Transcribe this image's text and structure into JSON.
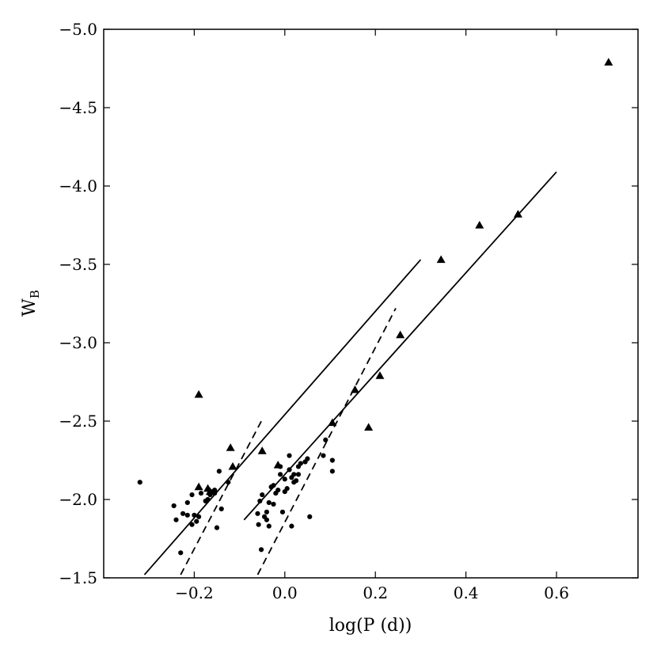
{
  "chart_data": {
    "type": "scatter",
    "xlabel": "log(P (d))",
    "ylabel": "W",
    "ylabel_subscript": "B",
    "xlim": [
      -0.4,
      0.78
    ],
    "ylim": [
      -1.5,
      -5.0
    ],
    "y_inverted": true,
    "grid": false,
    "x_ticks": [
      {
        "value": -0.2,
        "label": "−0.2"
      },
      {
        "value": 0.0,
        "label": "0.0"
      },
      {
        "value": 0.2,
        "label": "0.2"
      },
      {
        "value": 0.4,
        "label": "0.4"
      },
      {
        "value": 0.6,
        "label": "0.6"
      }
    ],
    "y_ticks": [
      {
        "value": -1.5,
        "label": "−1.5"
      },
      {
        "value": -2.0,
        "label": "−2.0"
      },
      {
        "value": -2.5,
        "label": "−2.5"
      },
      {
        "value": -3.0,
        "label": "−3.0"
      },
      {
        "value": -3.5,
        "label": "−3.5"
      },
      {
        "value": -4.0,
        "label": "−4.0"
      },
      {
        "value": -4.5,
        "label": "−4.5"
      },
      {
        "value": -5.0,
        "label": "−5.0"
      }
    ],
    "series": [
      {
        "marker": "circle",
        "points": [
          [
            -0.32,
            -2.11
          ],
          [
            -0.245,
            -1.96
          ],
          [
            -0.24,
            -1.87
          ],
          [
            -0.23,
            -1.66
          ],
          [
            -0.225,
            -1.91
          ],
          [
            -0.215,
            -1.9
          ],
          [
            -0.215,
            -1.98
          ],
          [
            -0.205,
            -1.84
          ],
          [
            -0.205,
            -2.03
          ],
          [
            -0.2,
            -1.9
          ],
          [
            -0.195,
            -1.86
          ],
          [
            -0.19,
            -1.89
          ],
          [
            -0.185,
            -2.04
          ],
          [
            -0.175,
            -1.99
          ],
          [
            -0.17,
            -2.0
          ],
          [
            -0.165,
            -2.03
          ],
          [
            -0.16,
            -2.05
          ],
          [
            -0.155,
            -2.04
          ],
          [
            -0.155,
            -2.06
          ],
          [
            -0.15,
            -1.82
          ],
          [
            -0.145,
            -2.18
          ],
          [
            -0.14,
            -1.94
          ],
          [
            -0.125,
            -2.11
          ],
          [
            -0.06,
            -1.91
          ],
          [
            -0.058,
            -1.84
          ],
          [
            -0.055,
            -1.99
          ],
          [
            -0.052,
            -1.68
          ],
          [
            -0.05,
            -2.03
          ],
          [
            -0.045,
            -1.89
          ],
          [
            -0.04,
            -1.92
          ],
          [
            -0.04,
            -1.87
          ],
          [
            -0.035,
            -1.83
          ],
          [
            -0.035,
            -1.98
          ],
          [
            -0.03,
            -2.08
          ],
          [
            -0.025,
            -1.97
          ],
          [
            -0.025,
            -2.09
          ],
          [
            -0.02,
            -2.04
          ],
          [
            -0.015,
            -2.06
          ],
          [
            -0.01,
            -2.16
          ],
          [
            -0.01,
            -2.21
          ],
          [
            -0.005,
            -1.92
          ],
          [
            0.0,
            -2.05
          ],
          [
            0.0,
            -2.13
          ],
          [
            0.005,
            -2.07
          ],
          [
            0.01,
            -2.19
          ],
          [
            0.01,
            -2.28
          ],
          [
            0.015,
            -2.14
          ],
          [
            0.015,
            -1.83
          ],
          [
            0.02,
            -2.16
          ],
          [
            0.02,
            -2.11
          ],
          [
            0.025,
            -2.12
          ],
          [
            0.03,
            -2.21
          ],
          [
            0.03,
            -2.16
          ],
          [
            0.035,
            -2.23
          ],
          [
            0.045,
            -2.24
          ],
          [
            0.05,
            -2.26
          ],
          [
            0.055,
            -1.89
          ],
          [
            0.085,
            -2.28
          ],
          [
            0.09,
            -2.38
          ],
          [
            0.105,
            -2.18
          ],
          [
            0.105,
            -2.25
          ]
        ]
      },
      {
        "marker": "triangle",
        "points": [
          [
            -0.19,
            -2.67
          ],
          [
            -0.19,
            -2.08
          ],
          [
            -0.17,
            -2.07
          ],
          [
            -0.165,
            -2.05
          ],
          [
            -0.12,
            -2.33
          ],
          [
            -0.115,
            -2.21
          ],
          [
            -0.05,
            -2.31
          ],
          [
            -0.015,
            -2.22
          ],
          [
            0.105,
            -2.49
          ],
          [
            0.155,
            -2.7
          ],
          [
            0.185,
            -2.46
          ],
          [
            0.21,
            -2.79
          ],
          [
            0.255,
            -3.05
          ],
          [
            0.345,
            -3.53
          ],
          [
            0.43,
            -3.75
          ],
          [
            0.515,
            -3.82
          ],
          [
            0.715,
            -4.79
          ]
        ]
      }
    ],
    "lines": [
      {
        "style": "solid",
        "points": [
          [
            -0.31,
            -1.52
          ],
          [
            0.3,
            -3.53
          ]
        ]
      },
      {
        "style": "solid",
        "points": [
          [
            -0.09,
            -1.87
          ],
          [
            0.6,
            -4.09
          ]
        ]
      },
      {
        "style": "dashed",
        "points": [
          [
            -0.23,
            -1.52
          ],
          [
            -0.05,
            -2.51
          ]
        ]
      },
      {
        "style": "dashed",
        "points": [
          [
            -0.06,
            -1.52
          ],
          [
            0.245,
            -3.22
          ]
        ]
      }
    ]
  }
}
